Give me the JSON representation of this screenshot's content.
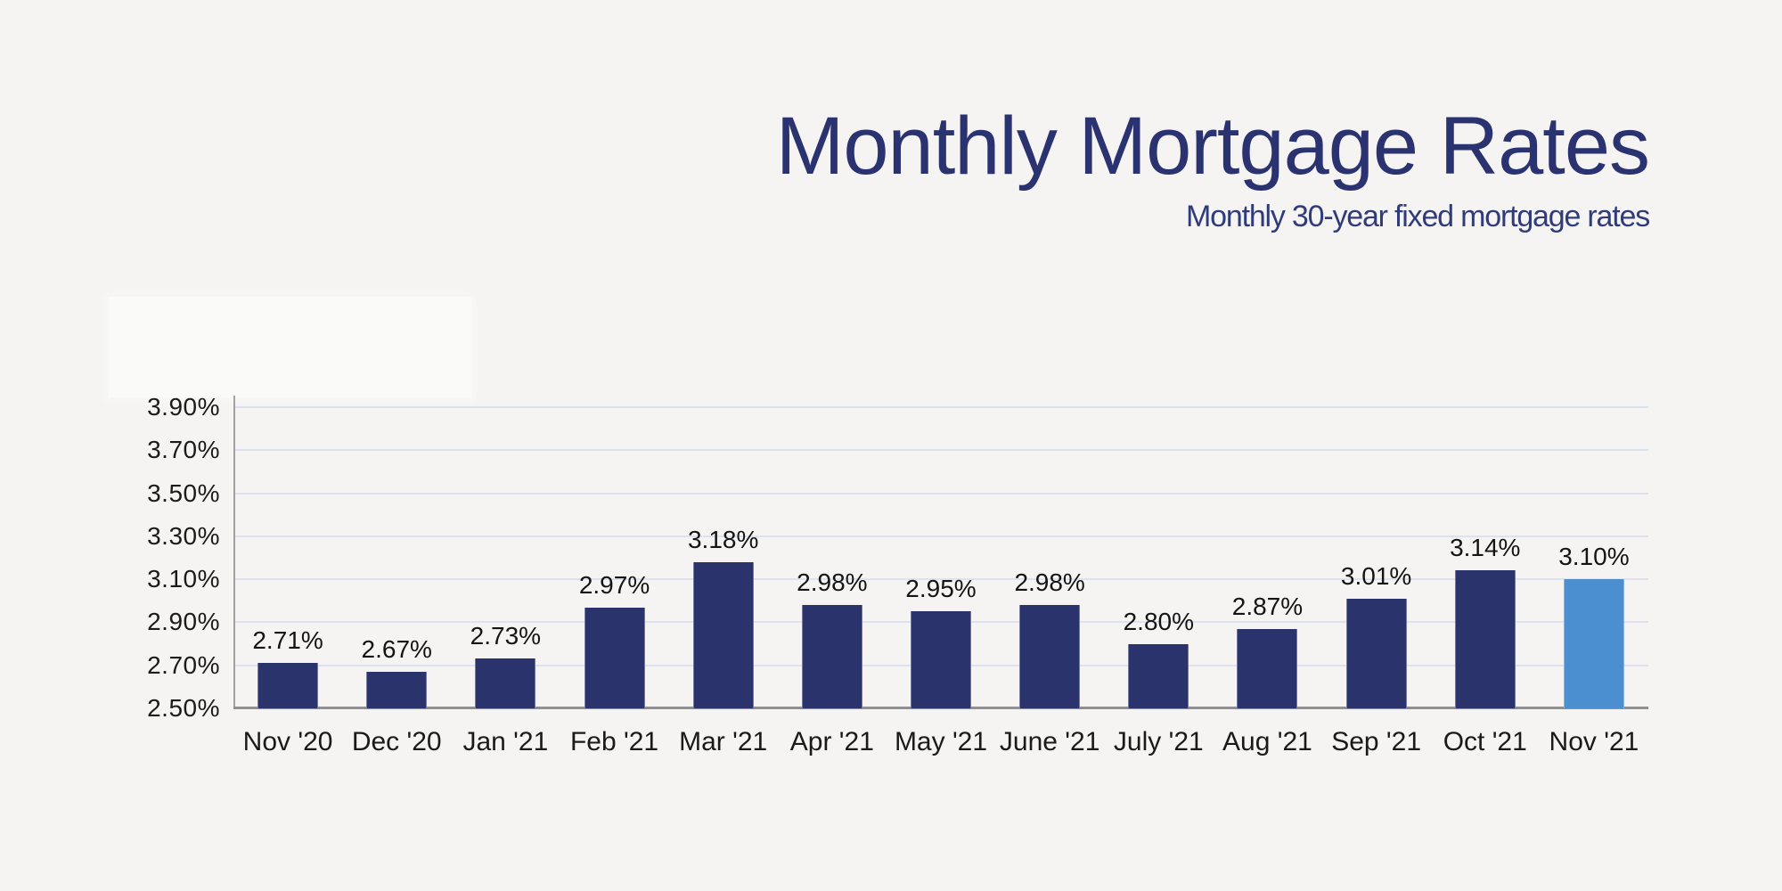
{
  "page": {
    "background_color": "#f5f4f3"
  },
  "header": {
    "title": "Monthly Mortgage Rates",
    "subtitle": "Monthly 30-year fixed mortgage rates",
    "title_color": "#2a326f",
    "subtitle_color": "#2f3c79"
  },
  "chart_data": {
    "type": "bar",
    "title": "Monthly Mortgage Rates",
    "subtitle": "Monthly 30-year fixed mortgage rates",
    "categories": [
      "Nov '20",
      "Dec '20",
      "Jan '21",
      "Feb '21",
      "Mar '21",
      "Apr '21",
      "May '21",
      "June '21",
      "July '21",
      "Aug '21",
      "Sep '21",
      "Oct '21",
      "Nov '21"
    ],
    "values": [
      2.71,
      2.67,
      2.73,
      2.97,
      3.18,
      2.98,
      2.95,
      2.98,
      2.8,
      2.87,
      3.01,
      3.14,
      3.1
    ],
    "value_labels": [
      "2.71%",
      "2.67%",
      "2.73%",
      "2.97%",
      "3.18%",
      "2.98%",
      "2.95%",
      "2.98%",
      "2.80%",
      "2.87%",
      "3.01%",
      "3.14%",
      "3.10%"
    ],
    "highlight_index": 12,
    "xlabel": "",
    "ylabel": "",
    "y_axis": {
      "tick_labels": [
        "3.90%",
        "3.70%",
        "3.50%",
        "3.30%",
        "3.10%",
        "2.90%",
        "2.70%",
        "2.50%"
      ],
      "tick_values": [
        3.9,
        3.7,
        3.5,
        3.3,
        3.1,
        2.9,
        2.7,
        2.5
      ],
      "min": 2.5,
      "max": 3.9,
      "step": 0.2
    },
    "ylim": [
      2.5,
      3.9
    ],
    "grid": true,
    "legend": "none",
    "colors": {
      "bar": "#2b336d",
      "highlight_bar": "#4b8fd0",
      "gridline": "#dce3ef",
      "axis": "#8e9094",
      "tick_text": "#1b1b1b"
    }
  }
}
